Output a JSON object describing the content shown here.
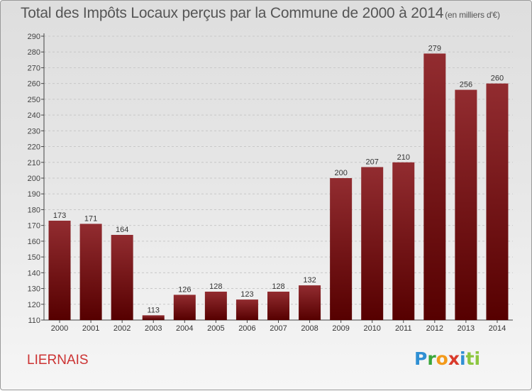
{
  "header": {
    "title": "Total des Impôts Locaux perçus par la Commune de 2000 à 2014",
    "unit": "(en milliers d'€)"
  },
  "footer": {
    "commune": "LIERNAIS",
    "logo_letters": [
      "P",
      "r",
      "o",
      "x",
      "i",
      "ti"
    ]
  },
  "colors": {
    "bar_top": "#922c30",
    "bar_bottom": "#560000",
    "commune_text": "#cc3333"
  },
  "chart_data": {
    "type": "bar",
    "title": "Total des Impôts Locaux perçus par la Commune de 2000 à 2014",
    "xlabel": "",
    "ylabel": "",
    "categories": [
      "2000",
      "2001",
      "2002",
      "2003",
      "2004",
      "2005",
      "2006",
      "2007",
      "2008",
      "2009",
      "2010",
      "2011",
      "2012",
      "2013",
      "2014"
    ],
    "values": [
      173,
      171,
      164,
      113,
      126,
      128,
      123,
      128,
      132,
      200,
      207,
      210,
      279,
      256,
      260
    ],
    "ylim": [
      110,
      290
    ],
    "yticks": [
      110,
      120,
      130,
      140,
      150,
      160,
      170,
      180,
      190,
      200,
      210,
      220,
      230,
      240,
      250,
      260,
      270,
      280,
      290
    ],
    "grid": true,
    "data_labels": true
  }
}
